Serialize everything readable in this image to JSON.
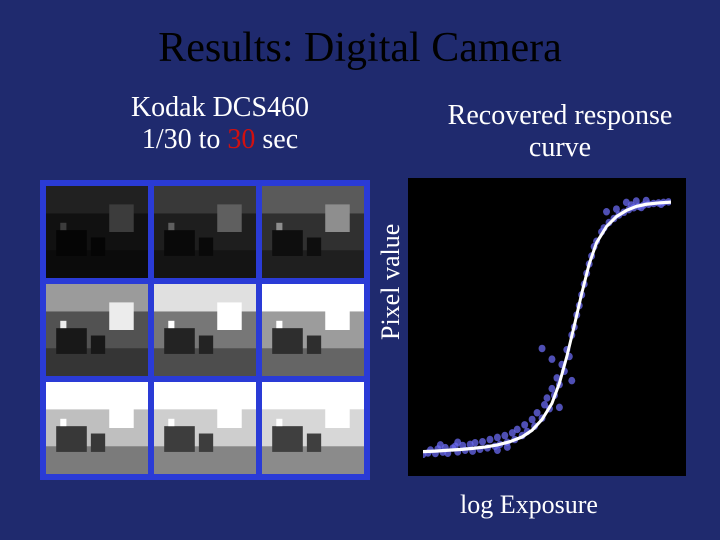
{
  "title": "Results: Digital Camera",
  "left_caption": {
    "line1": "Kodak DCS460",
    "line2_prefix": "1/30",
    "line2_mid": " to ",
    "line2_suffix": " sec",
    "line2_highlight": "30"
  },
  "right_caption": "Recovered response curve",
  "ylabel": "Pixel value",
  "xlabel": "log Exposure",
  "grid": {
    "rows": 3,
    "cols": 3,
    "border_color": "#2a3bd6",
    "thumbs": [
      {
        "brightness": 0.08
      },
      {
        "brightness": 0.14
      },
      {
        "brightness": 0.22
      },
      {
        "brightness": 0.38
      },
      {
        "brightness": 0.55
      },
      {
        "brightness": 0.72
      },
      {
        "brightness": 0.88
      },
      {
        "brightness": 0.95
      },
      {
        "brightness": 0.99
      }
    ]
  },
  "chart": {
    "type": "scatter-with-curve",
    "xlim": [
      0,
      1
    ],
    "ylim": [
      0,
      1
    ],
    "background_color": "#000000",
    "curve_color": "#ffffff",
    "curve_width": 1.2,
    "scatter_color": "#6a6af0",
    "scatter_size": 1.4,
    "curve_points": [
      [
        0.0,
        0.035
      ],
      [
        0.05,
        0.037
      ],
      [
        0.1,
        0.04
      ],
      [
        0.15,
        0.043
      ],
      [
        0.2,
        0.047
      ],
      [
        0.25,
        0.052
      ],
      [
        0.3,
        0.06
      ],
      [
        0.35,
        0.072
      ],
      [
        0.4,
        0.09
      ],
      [
        0.44,
        0.115
      ],
      [
        0.48,
        0.155
      ],
      [
        0.52,
        0.215
      ],
      [
        0.55,
        0.29
      ],
      [
        0.58,
        0.39
      ],
      [
        0.61,
        0.505
      ],
      [
        0.64,
        0.625
      ],
      [
        0.67,
        0.735
      ],
      [
        0.7,
        0.815
      ],
      [
        0.74,
        0.875
      ],
      [
        0.78,
        0.912
      ],
      [
        0.82,
        0.935
      ],
      [
        0.86,
        0.95
      ],
      [
        0.9,
        0.958
      ],
      [
        0.95,
        0.963
      ],
      [
        1.0,
        0.966
      ]
    ],
    "scatter_points": [
      [
        0.0,
        0.025
      ],
      [
        0.02,
        0.03
      ],
      [
        0.03,
        0.041
      ],
      [
        0.05,
        0.028
      ],
      [
        0.06,
        0.045
      ],
      [
        0.08,
        0.033
      ],
      [
        0.09,
        0.05
      ],
      [
        0.1,
        0.029
      ],
      [
        0.12,
        0.048
      ],
      [
        0.13,
        0.055
      ],
      [
        0.14,
        0.034
      ],
      [
        0.16,
        0.058
      ],
      [
        0.17,
        0.04
      ],
      [
        0.19,
        0.062
      ],
      [
        0.2,
        0.037
      ],
      [
        0.21,
        0.068
      ],
      [
        0.23,
        0.044
      ],
      [
        0.24,
        0.072
      ],
      [
        0.26,
        0.049
      ],
      [
        0.27,
        0.08
      ],
      [
        0.29,
        0.055
      ],
      [
        0.3,
        0.088
      ],
      [
        0.31,
        0.062
      ],
      [
        0.33,
        0.095
      ],
      [
        0.34,
        0.07
      ],
      [
        0.36,
        0.105
      ],
      [
        0.37,
        0.08
      ],
      [
        0.38,
        0.118
      ],
      [
        0.4,
        0.095
      ],
      [
        0.41,
        0.135
      ],
      [
        0.42,
        0.11
      ],
      [
        0.44,
        0.155
      ],
      [
        0.45,
        0.13
      ],
      [
        0.46,
        0.18
      ],
      [
        0.48,
        0.16
      ],
      [
        0.49,
        0.21
      ],
      [
        0.5,
        0.235
      ],
      [
        0.51,
        0.195
      ],
      [
        0.52,
        0.27
      ],
      [
        0.53,
        0.245
      ],
      [
        0.54,
        0.31
      ],
      [
        0.55,
        0.285
      ],
      [
        0.56,
        0.36
      ],
      [
        0.57,
        0.335
      ],
      [
        0.58,
        0.415
      ],
      [
        0.59,
        0.39
      ],
      [
        0.6,
        0.47
      ],
      [
        0.61,
        0.5
      ],
      [
        0.62,
        0.545
      ],
      [
        0.63,
        0.58
      ],
      [
        0.64,
        0.62
      ],
      [
        0.65,
        0.66
      ],
      [
        0.66,
        0.7
      ],
      [
        0.67,
        0.735
      ],
      [
        0.68,
        0.765
      ],
      [
        0.69,
        0.8
      ],
      [
        0.7,
        0.82
      ],
      [
        0.72,
        0.855
      ],
      [
        0.73,
        0.87
      ],
      [
        0.75,
        0.89
      ],
      [
        0.77,
        0.905
      ],
      [
        0.79,
        0.918
      ],
      [
        0.81,
        0.928
      ],
      [
        0.83,
        0.938
      ],
      [
        0.85,
        0.945
      ],
      [
        0.87,
        0.95
      ],
      [
        0.89,
        0.955
      ],
      [
        0.91,
        0.958
      ],
      [
        0.93,
        0.961
      ],
      [
        0.95,
        0.963
      ],
      [
        0.97,
        0.965
      ],
      [
        0.99,
        0.967
      ],
      [
        0.52,
        0.38
      ],
      [
        0.48,
        0.42
      ],
      [
        0.6,
        0.3
      ],
      [
        0.55,
        0.2
      ],
      [
        0.3,
        0.04
      ],
      [
        0.34,
        0.052
      ],
      [
        0.14,
        0.07
      ],
      [
        0.07,
        0.06
      ],
      [
        0.82,
        0.965
      ],
      [
        0.86,
        0.97
      ],
      [
        0.9,
        0.972
      ],
      [
        0.78,
        0.94
      ],
      [
        0.74,
        0.93
      ],
      [
        0.96,
        0.958
      ],
      [
        0.88,
        0.946
      ],
      [
        0.84,
        0.955
      ]
    ]
  }
}
